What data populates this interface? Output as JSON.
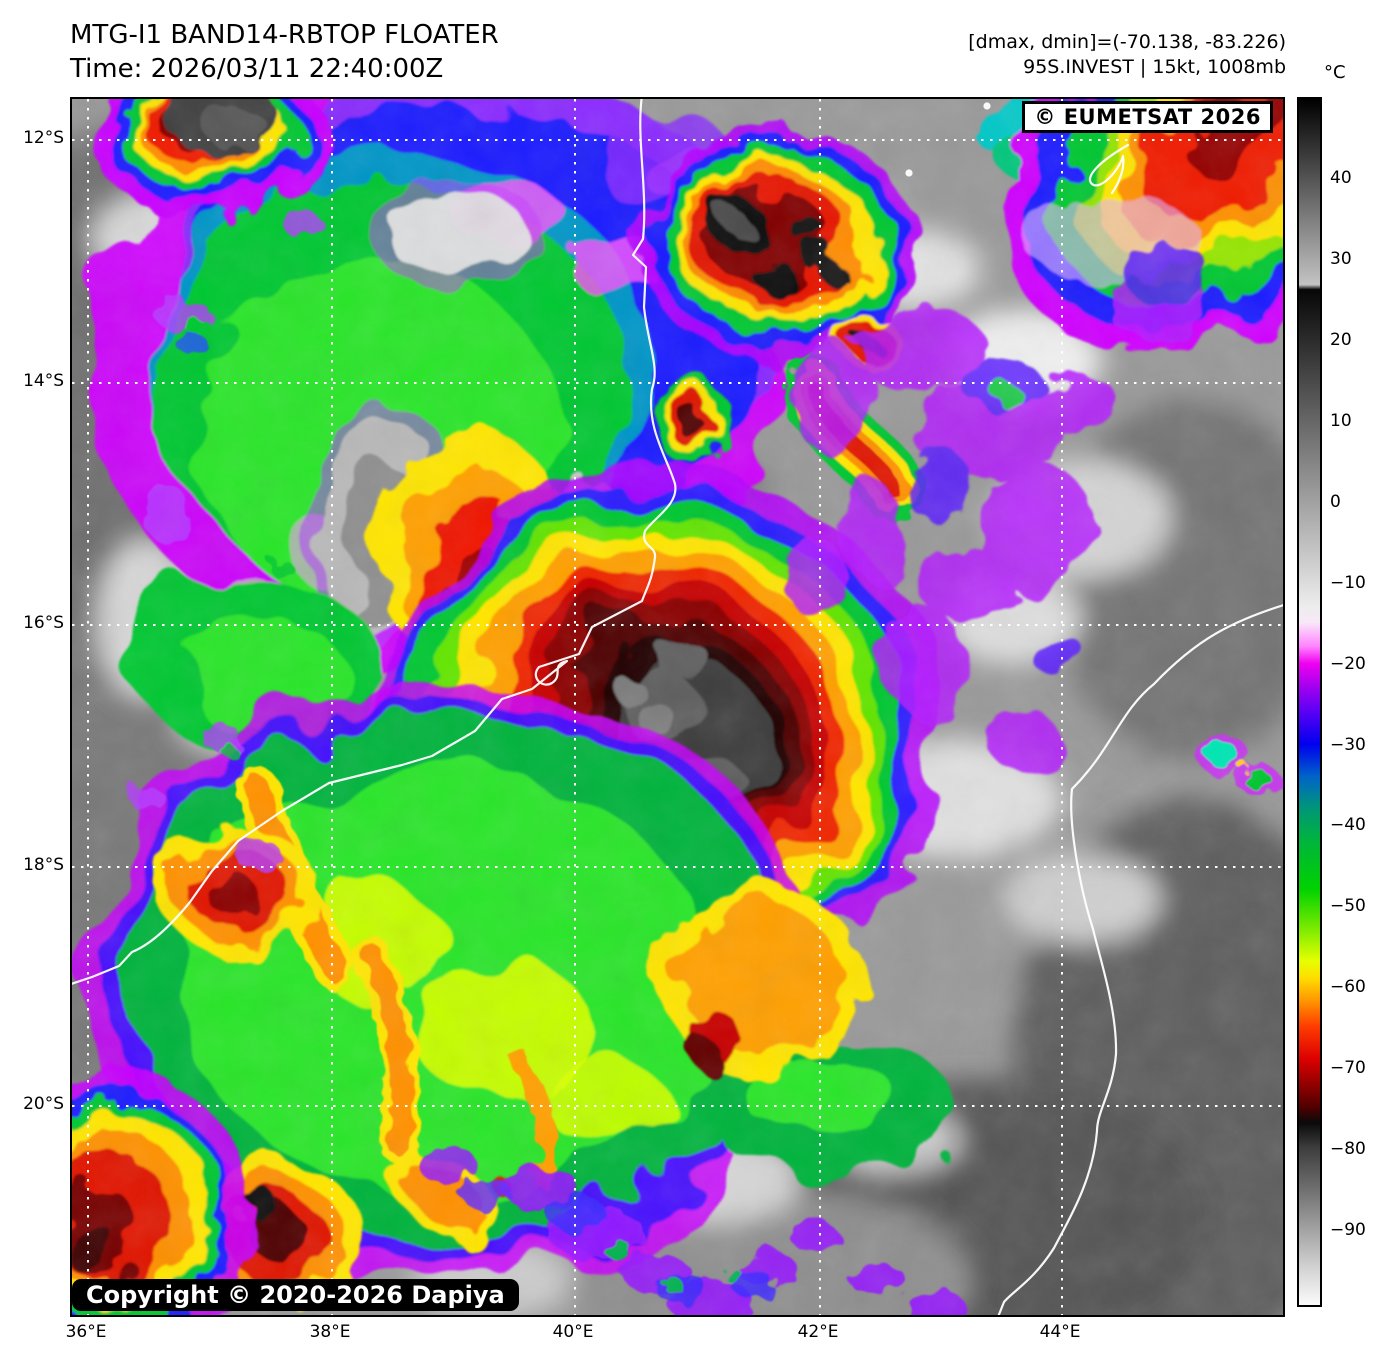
{
  "header": {
    "title": "MTG-I1 BAND14-RBTOP FLOATER",
    "time_line": "Time: 2026/03/11 22:40:00Z",
    "stats_line": "[dmax, dmin]=(-70.138, -83.226)",
    "storm_line": "95S.INVEST | 15kt, 1008mb"
  },
  "map": {
    "watermark": "© EUMETSAT 2026",
    "copyright": "Copyright © 2020-2026 Dapiya",
    "x_axis": {
      "labels": [
        "36°E",
        "38°E",
        "40°E",
        "42°E",
        "44°E"
      ]
    },
    "y_axis": {
      "labels": [
        "12°S",
        "14°S",
        "16°S",
        "18°S",
        "20°S"
      ]
    }
  },
  "colorbar": {
    "unit": "°C",
    "ticks": [
      "40",
      "30",
      "20",
      "10",
      "0",
      "−10",
      "−20",
      "−30",
      "−40",
      "−50",
      "−60",
      "−70",
      "−80",
      "−90"
    ]
  },
  "palette": {
    "magenta": "#d000ff",
    "purple": "#8a2bff",
    "blue": "#1e1eff",
    "teal": "#0096c8",
    "green": "#00c832",
    "bright_green": "#2ae62a",
    "yellow": "#ffe600",
    "orange": "#ff9100",
    "red": "#e61400",
    "dark_red": "#8c0000",
    "overshoot_gray": "#3c3c3c",
    "coastline": "#ffffff",
    "gridline": "#ffffff",
    "land_gray": "#9a9a9a"
  }
}
